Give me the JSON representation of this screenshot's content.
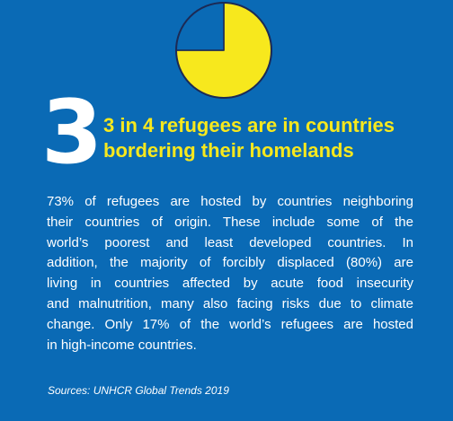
{
  "colors": {
    "background": "#0a6ab5",
    "accent": "#f7e81d",
    "text": "#ffffff",
    "pie_outline": "#1c2a55"
  },
  "chart_data": {
    "type": "pie",
    "slices": [
      {
        "value": 75,
        "color": "#f7e81d"
      },
      {
        "value": 25,
        "color": "#0a6ab5"
      }
    ]
  },
  "stat": {
    "number": "3",
    "headline_lines": [
      "3 in 4 refugees are in countries",
      "bordering their homelands"
    ]
  },
  "body": {
    "lines": [
      "73% of refugees are hosted by countries neighboring",
      "their countries of origin. These include some of the",
      "world’s poorest and least developed countries. In",
      "addition, the majority of forcibly displaced (80%) are",
      "living in countries affected by acute food insecurity",
      "and malnutrition, many also facing risks due to climate",
      "change. Only 17% of the world’s refugees are hosted",
      "in high-income countries."
    ]
  },
  "source": "Sources: UNHCR Global Trends 2019"
}
